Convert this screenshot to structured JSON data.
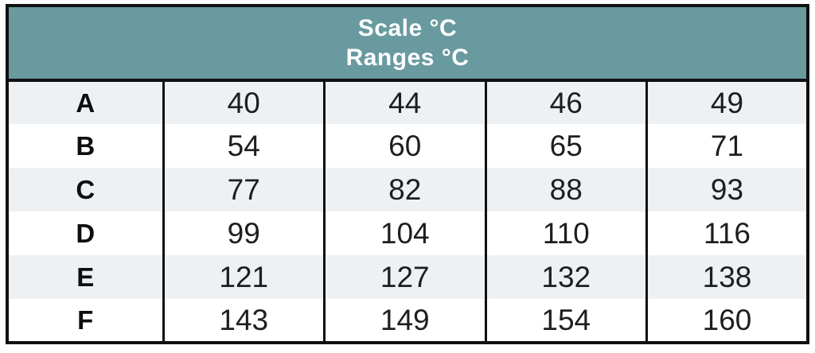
{
  "table": {
    "header": {
      "line1": "Scale °C",
      "line2": "Ranges °C"
    },
    "rows": [
      {
        "label": "A",
        "values": [
          "40",
          "44",
          "46",
          "49"
        ]
      },
      {
        "label": "B",
        "values": [
          "54",
          "60",
          "65",
          "71"
        ]
      },
      {
        "label": "C",
        "values": [
          "77",
          "82",
          "88",
          "93"
        ]
      },
      {
        "label": "D",
        "values": [
          "99",
          "104",
          "110",
          "116"
        ]
      },
      {
        "label": "E",
        "values": [
          "121",
          "127",
          "132",
          "138"
        ]
      },
      {
        "label": "F",
        "values": [
          "143",
          "149",
          "154",
          "160"
        ]
      }
    ]
  },
  "colors": {
    "header_bg": "#689aa0",
    "header_text": "#ffffff",
    "stripe_bg": "#edf1f4",
    "row_bg": "#ffffff",
    "border": "#101010",
    "body_text": "#1e1e1e"
  },
  "chart_data": {
    "type": "table",
    "title": "Scale °C Ranges °C",
    "row_labels": [
      "A",
      "B",
      "C",
      "D",
      "E",
      "F"
    ],
    "rows": [
      [
        40,
        44,
        46,
        49
      ],
      [
        54,
        60,
        65,
        71
      ],
      [
        77,
        82,
        88,
        93
      ],
      [
        99,
        104,
        110,
        116
      ],
      [
        121,
        127,
        132,
        138
      ],
      [
        143,
        149,
        154,
        160
      ]
    ]
  }
}
